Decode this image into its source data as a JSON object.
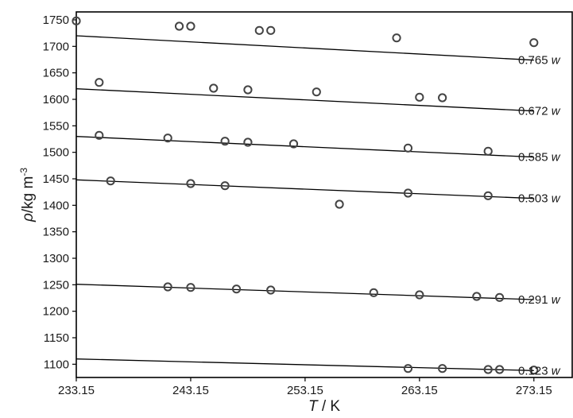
{
  "chart_data": {
    "type": "scatter",
    "title": "",
    "xlabel": {
      "symbol": "T",
      "unit": " / K"
    },
    "ylabel": {
      "symbol": "ρ",
      "unit": "/kg m",
      "exp": "-3"
    },
    "xlim": [
      233.15,
      276.5
    ],
    "ylim": [
      1075,
      1765
    ],
    "x_ticks": [
      233.15,
      243.15,
      253.15,
      263.15,
      273.15
    ],
    "x_tick_labels": [
      "233.15",
      "243.15",
      "253.15",
      "263.15",
      "273.15"
    ],
    "y_ticks": [
      1100,
      1150,
      1200,
      1250,
      1300,
      1350,
      1400,
      1450,
      1500,
      1550,
      1600,
      1650,
      1700,
      1750
    ],
    "y_tick_labels": [
      "1100",
      "1150",
      "1200",
      "1250",
      "1300",
      "1350",
      "1400",
      "1450",
      "1500",
      "1550",
      "1600",
      "1650",
      "1700",
      "1750"
    ],
    "grid": false,
    "series": [
      {
        "name": "0.765 w",
        "label": {
          "number": "0.765",
          "unit": "w"
        },
        "points": [
          [
            233.15,
            1748
          ],
          [
            242.15,
            1738
          ],
          [
            243.15,
            1738
          ],
          [
            249.15,
            1730
          ],
          [
            250.15,
            1730
          ],
          [
            261.15,
            1716
          ],
          [
            273.15,
            1707
          ]
        ],
        "fit": [
          [
            233.15,
            1720
          ],
          [
            273.15,
            1674
          ]
        ]
      },
      {
        "name": "0.672 w",
        "label": {
          "number": "0.672",
          "unit": "w"
        },
        "points": [
          [
            235.15,
            1632
          ],
          [
            245.15,
            1621
          ],
          [
            248.15,
            1618
          ],
          [
            254.15,
            1614
          ],
          [
            263.15,
            1604
          ],
          [
            265.15,
            1603
          ]
        ],
        "fit": [
          [
            233.15,
            1620
          ],
          [
            273.15,
            1578
          ]
        ]
      },
      {
        "name": "0.585 w",
        "label": {
          "number": "0.585",
          "unit": "w"
        },
        "points": [
          [
            235.15,
            1532
          ],
          [
            241.15,
            1527
          ],
          [
            246.15,
            1521
          ],
          [
            248.15,
            1519
          ],
          [
            252.15,
            1516
          ],
          [
            262.15,
            1508
          ],
          [
            269.15,
            1502
          ]
        ],
        "fit": [
          [
            233.15,
            1530
          ],
          [
            273.15,
            1491
          ]
        ]
      },
      {
        "name": "0.503 w",
        "label": {
          "number": "0.503",
          "unit": "w"
        },
        "points": [
          [
            236.15,
            1446
          ],
          [
            243.15,
            1441
          ],
          [
            246.15,
            1437
          ],
          [
            256.15,
            1402
          ],
          [
            262.15,
            1423
          ],
          [
            269.15,
            1418
          ]
        ],
        "fit": [
          [
            233.15,
            1448
          ],
          [
            273.15,
            1413
          ]
        ]
      },
      {
        "name": "0.291 w",
        "label": {
          "number": "0.291",
          "unit": "w"
        },
        "points": [
          [
            241.15,
            1246
          ],
          [
            243.15,
            1245
          ],
          [
            247.15,
            1242
          ],
          [
            250.15,
            1240
          ],
          [
            259.15,
            1235
          ],
          [
            263.15,
            1231
          ],
          [
            268.15,
            1228
          ],
          [
            270.15,
            1226
          ]
        ],
        "fit": [
          [
            233.15,
            1251
          ],
          [
            273.15,
            1222
          ]
        ]
      },
      {
        "name": "0.123 w",
        "label": {
          "number": "0.123",
          "unit": "w"
        },
        "points": [
          [
            262.15,
            1092
          ],
          [
            265.15,
            1092
          ],
          [
            269.15,
            1090
          ],
          [
            270.15,
            1090
          ],
          [
            273.15,
            1089
          ]
        ],
        "fit": [
          [
            233.15,
            1110
          ],
          [
            273.15,
            1088
          ]
        ]
      }
    ]
  }
}
